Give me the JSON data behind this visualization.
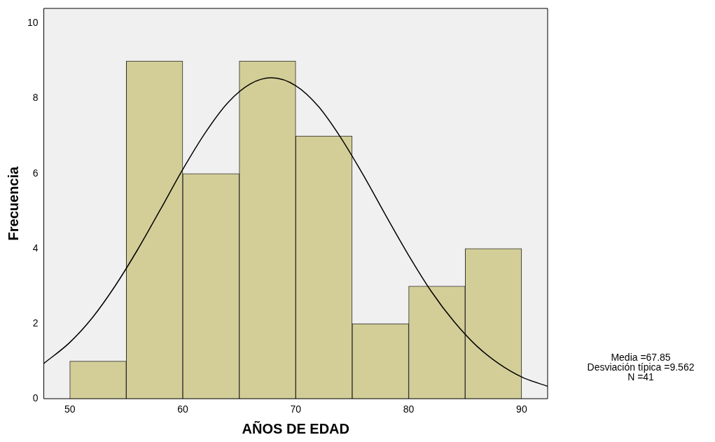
{
  "chart_data": {
    "type": "histogram",
    "xlabel": "AÑOS DE EDAD",
    "ylabel": "Frecuencia",
    "bins": [
      50,
      55,
      60,
      65,
      70,
      75,
      80,
      85,
      90
    ],
    "values": [
      1,
      9,
      6,
      9,
      7,
      2,
      3,
      4
    ],
    "color": "#d3ce97",
    "series": [
      {
        "type": "line",
        "color": "#000000",
        "x": [
          47.7,
          50,
          52,
          54,
          56,
          58,
          60,
          62,
          64,
          66,
          67.85,
          70,
          72,
          74,
          76,
          78,
          80,
          82,
          84,
          86,
          88,
          90,
          92.3
        ],
        "values": [
          0.94,
          1.5,
          2.16,
          3.0,
          3.97,
          5.03,
          6.11,
          7.09,
          7.89,
          8.39,
          8.55,
          8.34,
          7.79,
          6.95,
          5.95,
          4.87,
          3.82,
          2.86,
          2.06,
          1.41,
          0.93,
          0.58,
          0.33
        ]
      }
    ],
    "xlim": [
      47.7,
      92.3
    ],
    "xticks": [
      50,
      60,
      70,
      80,
      90
    ],
    "ylim": [
      0,
      10.4
    ],
    "yticks": [
      0,
      2,
      4,
      6,
      8,
      10
    ],
    "annotations": [
      "Media =67.85",
      "Desviación típica =9.562",
      "N =41"
    ]
  }
}
